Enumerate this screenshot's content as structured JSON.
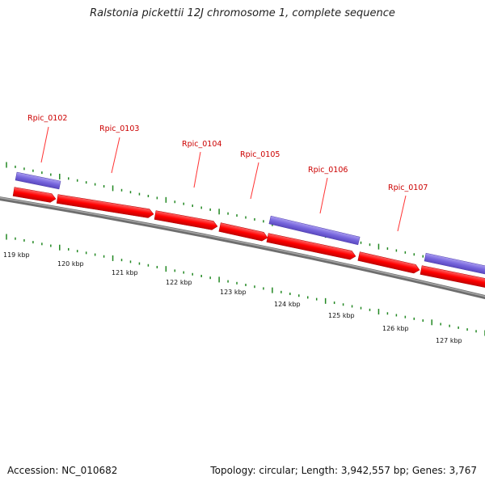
{
  "title": "Ralstonia pickettii 12J chromosome 1, complete sequence",
  "footer": {
    "accession": "Accession: NC_010682",
    "stats": "Topology: circular; Length: 3,942,557 bp; Genes: 3,767"
  },
  "colors": {
    "cds": "#ff0000",
    "gene": "#7766dd",
    "backbone": "#808080",
    "ticks": "#228822",
    "label": "#cc0000"
  },
  "kbp_ticks": [
    "119 kbp",
    "120 kbp",
    "121 kbp",
    "122 kbp",
    "123 kbp",
    "124 kbp",
    "125 kbp",
    "126 kbp",
    "127 kbp"
  ],
  "gene_labels": [
    "Rpic_0102",
    "Rpic_0103",
    "Rpic_0104",
    "Rpic_0105",
    "Rpic_0106",
    "Rpic_0107"
  ]
}
